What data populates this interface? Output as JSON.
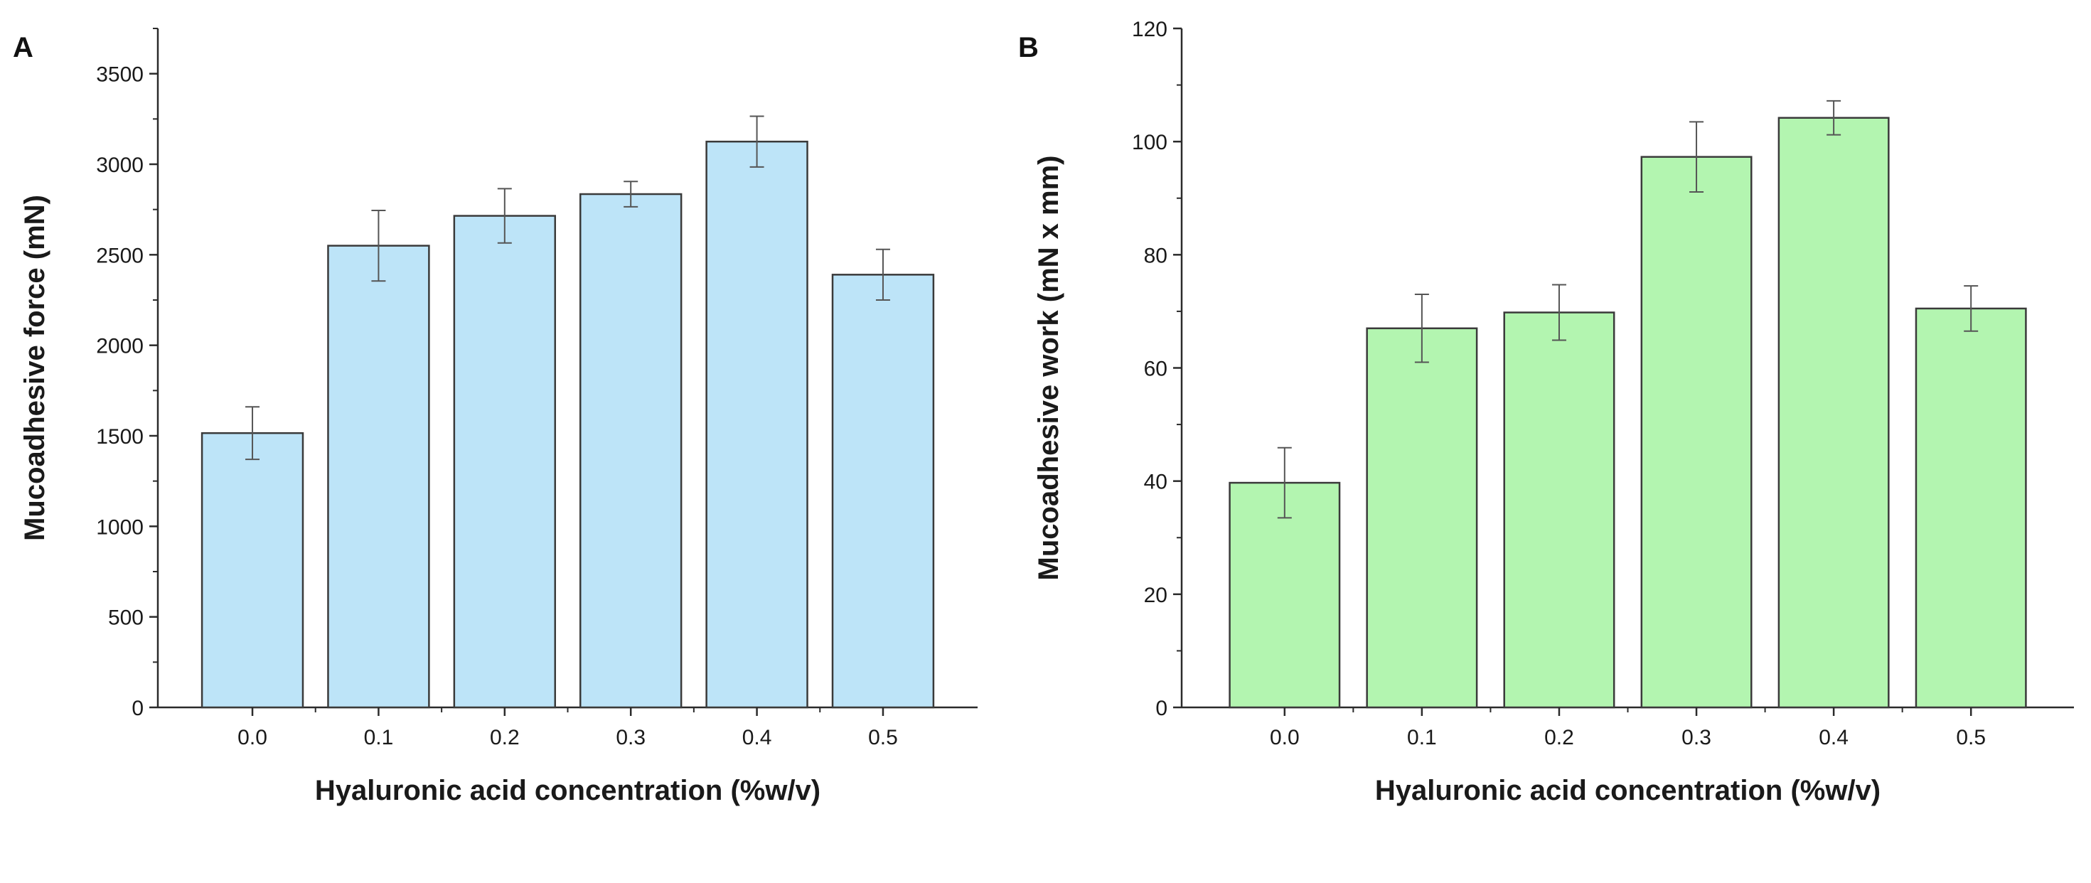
{
  "chart_data": [
    {
      "type": "bar",
      "panel_label": "A",
      "categories": [
        "0.0",
        "0.1",
        "0.2",
        "0.3",
        "0.4",
        "0.5"
      ],
      "values": [
        1515,
        2550,
        2715,
        2835,
        3125,
        2390
      ],
      "errors": [
        145,
        195,
        150,
        70,
        140,
        140
      ],
      "xlabel": "Hyaluronic acid concentration (%w/v)",
      "ylabel": "Mucoadhesive force (mN)",
      "ylim": [
        0,
        3750
      ],
      "yticks": [
        0,
        500,
        1000,
        1500,
        2000,
        2500,
        3000,
        3500
      ],
      "ytick_labels": [
        "0",
        "500",
        "1000",
        "1500",
        "2000",
        "2500",
        "3000",
        "3500"
      ],
      "bar_color": "#bde4f8"
    },
    {
      "type": "bar",
      "panel_label": "B",
      "categories": [
        "0.0",
        "0.1",
        "0.2",
        "0.3",
        "0.4",
        "0.5"
      ],
      "values": [
        39.7,
        67.0,
        69.8,
        97.3,
        104.2,
        70.5
      ],
      "errors": [
        6.2,
        6.0,
        4.9,
        6.2,
        3.0,
        4.0
      ],
      "xlabel": "Hyaluronic acid concentration (%w/v)",
      "ylabel": "Mucoadhesive work (mN x mm)",
      "ylim": [
        0,
        120
      ],
      "yticks": [
        0,
        20,
        40,
        60,
        80,
        100,
        120
      ],
      "ytick_labels": [
        "0",
        "20",
        "40",
        "60",
        "80",
        "100",
        "120"
      ],
      "bar_color": "#b3f5b0"
    }
  ]
}
